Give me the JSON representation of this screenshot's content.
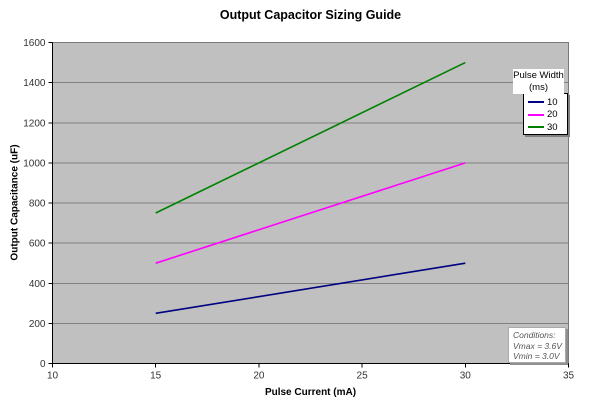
{
  "chart_data": {
    "type": "line",
    "title": "Output Capacitor Sizing Guide",
    "xlabel": "Pulse Current (mA)",
    "ylabel": "Output Capacitance (uF)",
    "xlim": [
      10,
      35
    ],
    "ylim": [
      0,
      1600
    ],
    "x_ticks": [
      10,
      15,
      20,
      25,
      30,
      35
    ],
    "y_ticks": [
      0,
      200,
      400,
      600,
      800,
      1000,
      1200,
      1400,
      1600
    ],
    "grid": "horizontal-only",
    "plot_bg": "#c0c0c0",
    "gridline_color": "#808080",
    "legend": {
      "position": "top-right",
      "title_line1": "Pulse Width",
      "title_line2": "(ms)"
    },
    "series": [
      {
        "name": "10",
        "color": "#000080",
        "x": [
          15,
          30
        ],
        "y": [
          250,
          500
        ]
      },
      {
        "name": "20",
        "color": "#ff00ff",
        "x": [
          15,
          30
        ],
        "y": [
          500,
          1000
        ]
      },
      {
        "name": "30",
        "color": "#008000",
        "x": [
          15,
          30
        ],
        "y": [
          750,
          1500
        ]
      }
    ],
    "annotation": {
      "lines": [
        "Conditions:",
        "Vmax = 3.6V",
        "Vmin = 3.0V"
      ]
    }
  }
}
